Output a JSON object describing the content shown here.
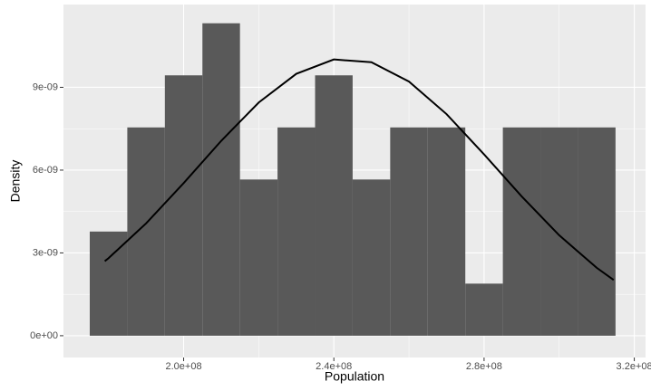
{
  "chart_data": {
    "type": "histogram",
    "x_label": "Population",
    "y_label": "Density",
    "bins": [
      175000000,
      185000000,
      195000000,
      205000000,
      215000000,
      225000000,
      235000000,
      245000000,
      255000000,
      265000000,
      275000000,
      285000000,
      295000000,
      305000000,
      315000000
    ],
    "values": [
      3.774e-09,
      7.547e-09,
      9.434e-09,
      1.1321e-08,
      5.66e-09,
      7.547e-09,
      9.434e-09,
      5.66e-09,
      7.547e-09,
      7.547e-09,
      1.887e-09,
      7.547e-09,
      7.547e-09,
      7.547e-09
    ],
    "color": "#595959",
    "curve": {
      "color": "#000000",
      "x": [
        179000000,
        180000000,
        190000000,
        200000000,
        210000000,
        220000000,
        230000000,
        240000000,
        250000000,
        260000000,
        270000000,
        280000000,
        290000000,
        300000000,
        310000000,
        314500000
      ],
      "values": [
        2.7e-09,
        2.81e-09,
        4.07e-09,
        5.53e-09,
        7.06e-09,
        8.45e-09,
        9.49e-09,
        1.001e-08,
        9.91e-09,
        9.21e-09,
        8.03e-09,
        6.57e-09,
        5.05e-09,
        3.64e-09,
        2.46e-09,
        2.02e-09
      ]
    },
    "xlim": [
      168000000,
      323000000
    ],
    "ylim": [
      -7.9e-10,
      1.2e-08
    ],
    "xticks": [
      {
        "value": 200000000,
        "label": "2.0e+08"
      },
      {
        "value": 240000000,
        "label": "2.4e+08"
      },
      {
        "value": 280000000,
        "label": "2.8e+08"
      },
      {
        "value": 320000000,
        "label": "3.2e+08"
      }
    ],
    "yticks": [
      {
        "value": 0,
        "label": "0e+00"
      },
      {
        "value": 3e-09,
        "label": "3e-09"
      },
      {
        "value": 6e-09,
        "label": "6e-09"
      },
      {
        "value": 9e-09,
        "label": "9e-09"
      }
    ],
    "grid": true
  }
}
